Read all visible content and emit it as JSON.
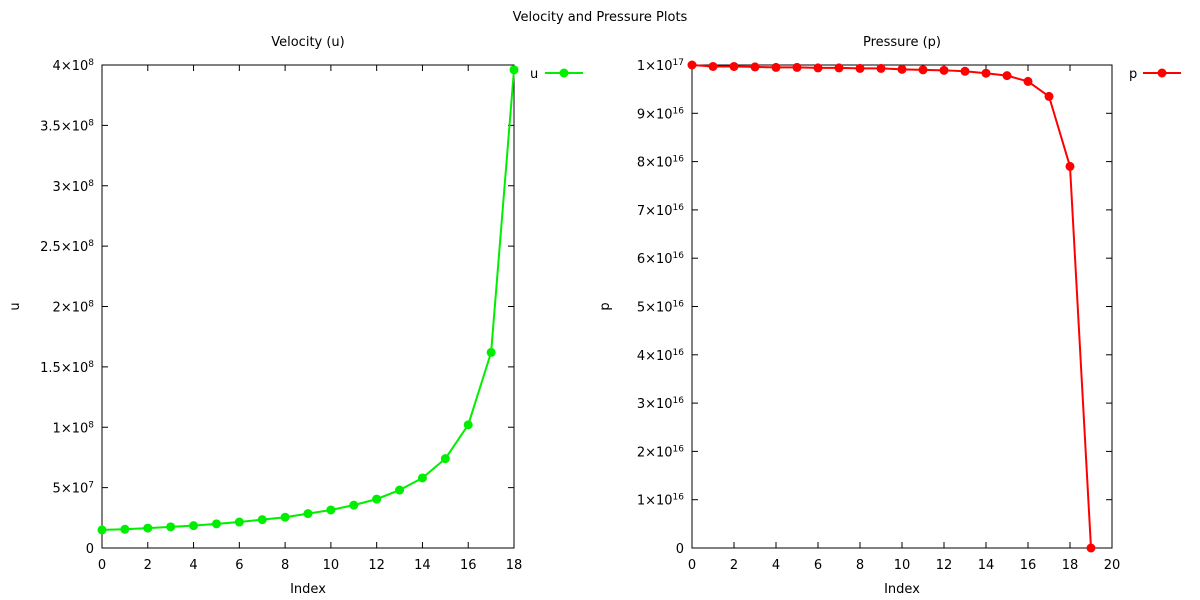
{
  "figure": {
    "title": "Velocity and Pressure Plots"
  },
  "chart_data": [
    {
      "type": "line",
      "title": "Velocity (u)",
      "xlabel": "Index",
      "ylabel": "u",
      "xlim": [
        0,
        18
      ],
      "ylim": [
        0,
        400000000
      ],
      "x_ticks": [
        0,
        2,
        4,
        6,
        8,
        10,
        12,
        14,
        16,
        18
      ],
      "x_tick_labels": [
        "0",
        "2",
        "4",
        "6",
        "8",
        "10",
        "12",
        "14",
        "16",
        "18"
      ],
      "y_ticks": [
        0,
        50000000,
        100000000,
        150000000,
        200000000,
        250000000,
        300000000,
        350000000,
        400000000
      ],
      "y_tick_labels": [
        {
          "base": "0",
          "exp": ""
        },
        {
          "base": "5×10",
          "exp": "7"
        },
        {
          "base": "1×10",
          "exp": "8"
        },
        {
          "base": "1.5×10",
          "exp": "8"
        },
        {
          "base": "2×10",
          "exp": "8"
        },
        {
          "base": "2.5×10",
          "exp": "8"
        },
        {
          "base": "3×10",
          "exp": "8"
        },
        {
          "base": "3.5×10",
          "exp": "8"
        },
        {
          "base": "4×10",
          "exp": "8"
        }
      ],
      "legend_position": "outside-top-right",
      "grid": false,
      "series": [
        {
          "name": "u",
          "color": "#00ee00",
          "x": [
            0,
            1,
            2,
            3,
            4,
            5,
            6,
            7,
            8,
            9,
            10,
            11,
            12,
            13,
            14,
            15,
            16,
            17,
            18
          ],
          "y": [
            15000000,
            15500000,
            16500000,
            17500000,
            18500000,
            20000000,
            21500000,
            23500000,
            25500000,
            28500000,
            31500000,
            35500000,
            40500000,
            48000000,
            58000000,
            74000000,
            102000000,
            162000000,
            396000000
          ]
        }
      ]
    },
    {
      "type": "line",
      "title": "Pressure (p)",
      "xlabel": "Index",
      "ylabel": "p",
      "xlim": [
        0,
        20
      ],
      "ylim": [
        0,
        100000000000000000
      ],
      "x_ticks": [
        0,
        2,
        4,
        6,
        8,
        10,
        12,
        14,
        16,
        18,
        20
      ],
      "x_tick_labels": [
        "0",
        "2",
        "4",
        "6",
        "8",
        "10",
        "12",
        "14",
        "16",
        "18",
        "20"
      ],
      "y_ticks": [
        0,
        10000000000000000,
        20000000000000000,
        30000000000000000,
        40000000000000000,
        50000000000000000,
        60000000000000000,
        70000000000000000,
        80000000000000000,
        90000000000000000,
        100000000000000000
      ],
      "y_tick_labels": [
        {
          "base": "0",
          "exp": ""
        },
        {
          "base": "1×10",
          "exp": "16"
        },
        {
          "base": "2×10",
          "exp": "16"
        },
        {
          "base": "3×10",
          "exp": "16"
        },
        {
          "base": "4×10",
          "exp": "16"
        },
        {
          "base": "5×10",
          "exp": "16"
        },
        {
          "base": "6×10",
          "exp": "16"
        },
        {
          "base": "7×10",
          "exp": "16"
        },
        {
          "base": "8×10",
          "exp": "16"
        },
        {
          "base": "9×10",
          "exp": "16"
        },
        {
          "base": "1×10",
          "exp": "17"
        }
      ],
      "legend_position": "outside-top-right",
      "grid": false,
      "series": [
        {
          "name": "p",
          "color": "#ff0000",
          "x": [
            0,
            1,
            2,
            3,
            4,
            5,
            6,
            7,
            8,
            9,
            10,
            11,
            12,
            13,
            14,
            15,
            16,
            17,
            18,
            19
          ],
          "y": [
            100000000000000000,
            99700000000000000,
            99700000000000000,
            99600000000000000,
            99500000000000000,
            99500000000000000,
            99400000000000000,
            99400000000000000,
            99300000000000000,
            99300000000000000,
            99100000000000000,
            99000000000000000,
            98900000000000000,
            98700000000000000,
            98300000000000000,
            97800000000000000,
            96600000000000000,
            93500000000000000,
            79000000000000000,
            0
          ]
        }
      ]
    }
  ]
}
